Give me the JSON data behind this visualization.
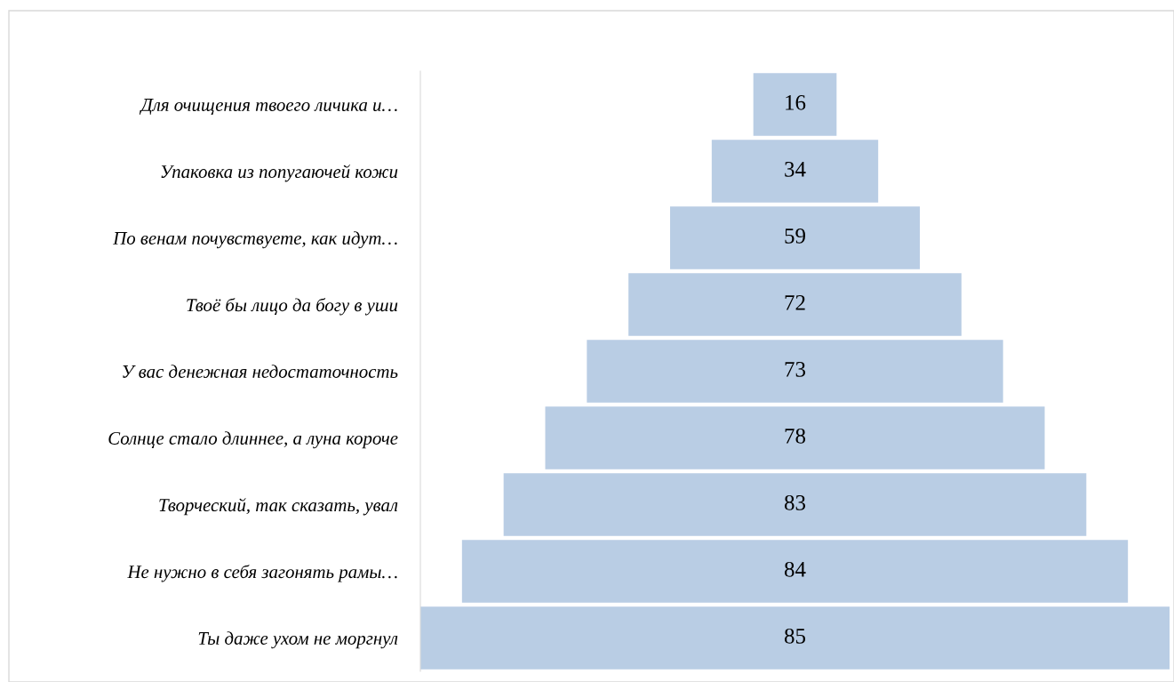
{
  "chart_data": {
    "type": "other",
    "categories": [
      "Для очищения твоего личика и…",
      "Упаковка из попугаючей кожи",
      "По венам почувствуете, как идут…",
      "Твоё бы лицо да богу в уши",
      "У вас денежная недостаточность",
      "Солнце стало длиннее, а луна короче",
      "Творческий, так сказать, увал",
      "Не нужно в себя загонять рамы…",
      "Ты даже ухом не моргнул"
    ],
    "values": [
      16,
      34,
      59,
      72,
      73,
      78,
      83,
      84,
      85
    ],
    "color": "#b9cde4",
    "data_labels": true
  }
}
